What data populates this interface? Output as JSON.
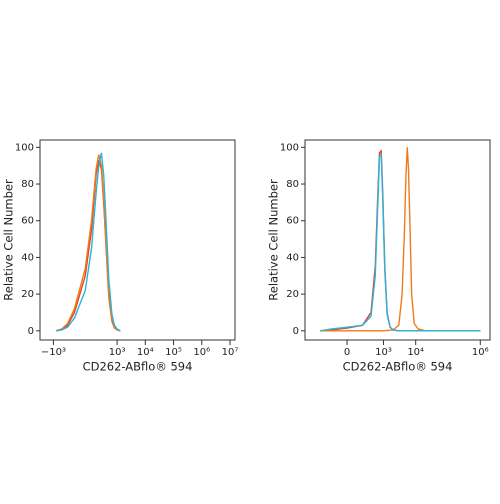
{
  "chart_data": [
    {
      "type": "line",
      "xscale": "biex",
      "x_label": "CD262-ABflo® 594",
      "y_label": "Relative Cell Number",
      "xlim": [
        -3000,
        15000000
      ],
      "xticks": [
        {
          "value": -1000,
          "label": "−10³"
        },
        {
          "value": 1000,
          "label": "10³"
        },
        {
          "value": 10000,
          "label": "10⁴"
        },
        {
          "value": 100000,
          "label": "10⁵"
        },
        {
          "value": 1000000,
          "label": "10⁶"
        },
        {
          "value": 10000000,
          "label": "10⁷"
        }
      ],
      "ylim": [
        -5,
        104
      ],
      "yticks": [
        0,
        20,
        40,
        60,
        80,
        100
      ],
      "series": [
        {
          "color": "#e8402a",
          "x": [
            -800,
            -500,
            -300,
            -150,
            0,
            80,
            150,
            200,
            260,
            320,
            400,
            500,
            650,
            800,
            1000,
            1300
          ],
          "values": [
            0,
            1,
            3,
            10,
            30,
            55,
            85,
            93,
            88,
            70,
            45,
            20,
            6,
            2,
            0.5,
            0
          ]
        },
        {
          "color": "#f07a1a",
          "x": [
            -800,
            -500,
            -300,
            -150,
            0,
            80,
            150,
            200,
            260,
            320,
            400,
            500,
            650,
            800,
            1000,
            1300
          ],
          "values": [
            0,
            1,
            4,
            12,
            34,
            60,
            88,
            96,
            90,
            72,
            44,
            18,
            5,
            1.5,
            0.5,
            0
          ]
        },
        {
          "color": "#2ab3d8",
          "x": [
            -800,
            -500,
            -300,
            -150,
            0,
            80,
            150,
            200,
            260,
            320,
            400,
            500,
            650,
            800,
            1000,
            1300
          ],
          "values": [
            0,
            0.5,
            2,
            7,
            22,
            45,
            75,
            90,
            97,
            85,
            58,
            28,
            9,
            3,
            1,
            0
          ]
        }
      ]
    },
    {
      "type": "line",
      "xscale": "biex",
      "x_label": "CD262-ABflo® 594",
      "y_label": "Relative Cell Number",
      "xlim": [
        -1500,
        2000000
      ],
      "xticks": [
        {
          "value": 0,
          "label": "0"
        },
        {
          "value": 1000,
          "label": "10³"
        },
        {
          "value": 10000,
          "label": "10⁴"
        },
        {
          "value": 1000000,
          "label": "10⁶"
        }
      ],
      "ylim": [
        -5,
        104
      ],
      "yticks": [
        0,
        20,
        40,
        60,
        80,
        100
      ],
      "series": [
        {
          "color": "#e8402a",
          "x": [
            -500,
            -200,
            0,
            200,
            400,
            550,
            650,
            750,
            850,
            950,
            1100,
            1300,
            1600,
            2000,
            3000,
            10000,
            100000,
            1000000
          ],
          "values": [
            0,
            0.5,
            1.5,
            3,
            10,
            35,
            70,
            97,
            98,
            75,
            35,
            10,
            2,
            0.5,
            0,
            0,
            0,
            0
          ]
        },
        {
          "color": "#f07a1a",
          "x": [
            -500,
            0,
            1000,
            2000,
            3000,
            3800,
            4500,
            5000,
            5500,
            6000,
            6700,
            7500,
            9000,
            12000,
            20000,
            100000,
            1000000
          ],
          "values": [
            0,
            0,
            0,
            0.5,
            3,
            20,
            55,
            85,
            100,
            88,
            55,
            20,
            4,
            1,
            0,
            0,
            0
          ]
        },
        {
          "color": "#2ab3d8",
          "x": [
            -500,
            -200,
            0,
            200,
            400,
            550,
            650,
            750,
            850,
            950,
            1100,
            1300,
            1600,
            2000,
            3000,
            10000,
            100000,
            1000000
          ],
          "values": [
            0,
            1,
            2,
            3,
            8,
            30,
            65,
            95,
            96,
            72,
            33,
            9,
            2,
            0.5,
            0,
            0,
            0,
            0
          ]
        }
      ]
    }
  ]
}
